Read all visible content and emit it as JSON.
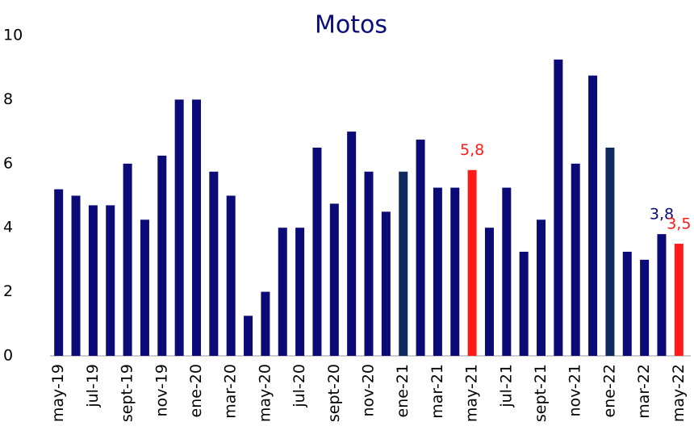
{
  "chart_data": {
    "type": "bar",
    "title": "Motos",
    "categories": [
      "may-19",
      null,
      "jul-19",
      null,
      "sept-19",
      null,
      "nov-19",
      null,
      "ene-20",
      null,
      "mar-20",
      null,
      "may-20",
      null,
      "jul-20",
      null,
      "sept-20",
      null,
      "nov-20",
      null,
      "ene-21",
      null,
      "mar-21",
      null,
      "may-21",
      null,
      "jul-21",
      null,
      "sept-21",
      null,
      "nov-21",
      null,
      "ene-22",
      null,
      "mar-22",
      null,
      "may-22"
    ],
    "values": [
      5.2,
      5.0,
      4.7,
      4.7,
      6.0,
      4.25,
      6.25,
      8.0,
      8.0,
      5.75,
      5.0,
      1.25,
      2.0,
      4.0,
      4.0,
      6.5,
      4.75,
      7.0,
      5.75,
      4.5,
      5.75,
      6.75,
      5.25,
      5.25,
      5.8,
      4.0,
      5.25,
      3.25,
      4.25,
      9.25,
      6.0,
      8.75,
      6.5,
      3.25,
      3.0,
      3.8,
      3.5
    ],
    "value_labels": [
      null,
      null,
      null,
      null,
      null,
      null,
      null,
      null,
      null,
      null,
      null,
      null,
      null,
      null,
      null,
      null,
      null,
      null,
      null,
      null,
      null,
      null,
      null,
      null,
      "5,8",
      null,
      null,
      null,
      null,
      null,
      null,
      null,
      null,
      null,
      null,
      "3,8",
      "3,5"
    ],
    "colors": [
      "#0b0b78",
      "#0b0b78",
      "#0b0b78",
      "#0b0b78",
      "#0b0b78",
      "#0b0b78",
      "#0b0b78",
      "#0b0b78",
      "#0b0b78",
      "#0b0b78",
      "#0b0b78",
      "#0b0b78",
      "#0b0b78",
      "#0b0b78",
      "#0b0b78",
      "#0b0b78",
      "#0b0b78",
      "#0b0b78",
      "#0b0b78",
      "#0b0b78",
      "#102a5c",
      "#0b0b78",
      "#0b0b78",
      "#0b0b78",
      "#ff1a1a",
      "#0b0b78",
      "#0b0b78",
      "#0b0b78",
      "#0b0b78",
      "#0b0b78",
      "#0b0b78",
      "#0b0b78",
      "#102a5c",
      "#0b0b78",
      "#0b0b78",
      "#0b0b78",
      "#ff1a1a"
    ],
    "ylim": [
      0,
      10
    ],
    "yticks": [
      0,
      2,
      4,
      6,
      8,
      10
    ],
    "grid": false
  }
}
